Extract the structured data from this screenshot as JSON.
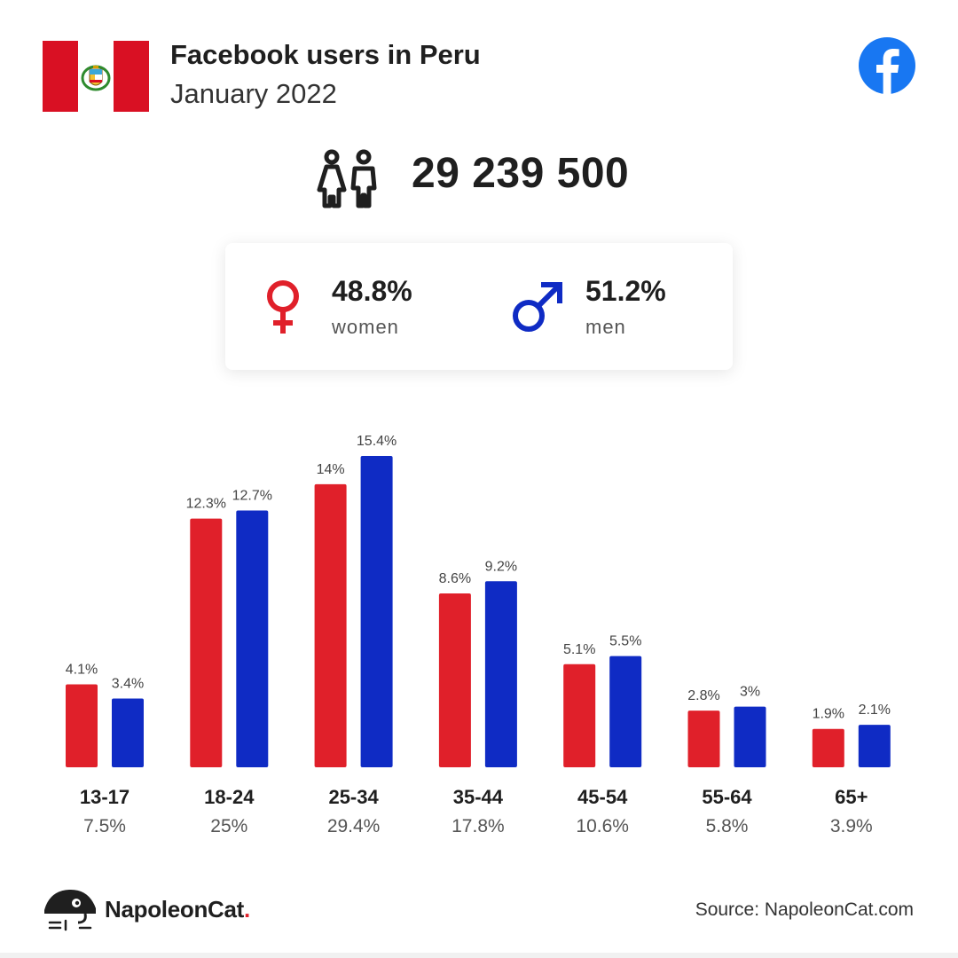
{
  "header": {
    "title": "Facebook users in Peru",
    "subtitle": "January 2022"
  },
  "total": {
    "value": "29 239 500",
    "icon": "users-icon"
  },
  "gender": {
    "women": {
      "pct": "48.8%",
      "label": "women",
      "icon": "female-icon",
      "color": "#e0202a"
    },
    "men": {
      "pct": "51.2%",
      "label": "men",
      "icon": "male-icon",
      "color": "#0f2bc4"
    }
  },
  "colors": {
    "women": "#e0202a",
    "men": "#0f2bc4",
    "flag_red": "#d91023",
    "facebook": "#1877f2"
  },
  "footer": {
    "brand_name": "NapoleonCat",
    "brand_dot": ".",
    "source": "Source: NapoleonCat.com"
  },
  "chart_data": {
    "type": "bar",
    "categories": [
      "13-17",
      "18-24",
      "25-34",
      "35-44",
      "45-54",
      "55-64",
      "65+"
    ],
    "category_totals": [
      "7.5%",
      "25%",
      "29.4%",
      "17.8%",
      "10.6%",
      "5.8%",
      "3.9%"
    ],
    "series": [
      {
        "name": "women",
        "color": "#e0202a",
        "values": [
          4.1,
          12.3,
          14,
          8.6,
          5.1,
          2.8,
          1.9
        ]
      },
      {
        "name": "men",
        "color": "#0f2bc4",
        "values": [
          3.4,
          12.7,
          15.4,
          9.2,
          5.5,
          3,
          2.1
        ]
      }
    ],
    "value_suffix": "%",
    "ylim": [
      0,
      15.4
    ],
    "grid": false,
    "legend": "none"
  }
}
